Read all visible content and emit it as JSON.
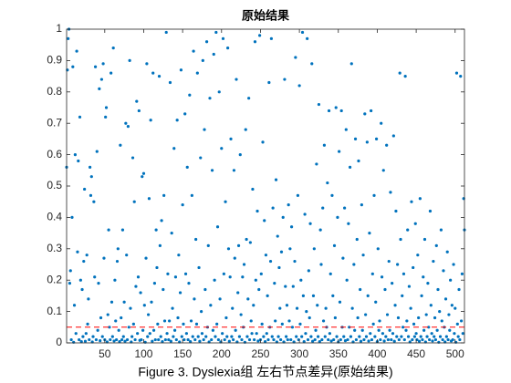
{
  "chart_data": {
    "type": "scatter",
    "title": "原始结果",
    "caption": "Figure 3. Dyslexia组 左右节点差异(原始结果)",
    "color": "#0072bd",
    "hline": {
      "value": 0.05,
      "color": "#ff0000"
    },
    "xlim": [
      1,
      512
    ],
    "ylim": [
      0,
      1
    ],
    "xticks": [
      50,
      100,
      150,
      200,
      250,
      300,
      350,
      400,
      450,
      500
    ],
    "yticks": [
      0,
      0.1,
      0.2,
      0.3,
      0.4,
      0.5,
      0.6,
      0.7,
      0.8,
      0.9,
      1
    ],
    "x": [
      1,
      2,
      3,
      4,
      5,
      6,
      7,
      8,
      9,
      10,
      11,
      12,
      13,
      14,
      15,
      16,
      17,
      18,
      19,
      20,
      21,
      22,
      23,
      24,
      25,
      26,
      27,
      28,
      29,
      30,
      31,
      32,
      33,
      34,
      35,
      36,
      37,
      38,
      39,
      40,
      41,
      42,
      43,
      44,
      45,
      46,
      47,
      48,
      49,
      50,
      51,
      52,
      53,
      54,
      55,
      56,
      57,
      58,
      59,
      60,
      61,
      62,
      63,
      64,
      65,
      66,
      67,
      68,
      69,
      70,
      71,
      72,
      73,
      74,
      75,
      76,
      77,
      78,
      79,
      80,
      81,
      82,
      83,
      84,
      85,
      86,
      87,
      88,
      89,
      90,
      91,
      92,
      93,
      94,
      95,
      96,
      97,
      98,
      99,
      100,
      101,
      102,
      103,
      104,
      105,
      106,
      107,
      108,
      109,
      110,
      111,
      112,
      113,
      114,
      115,
      116,
      117,
      118,
      119,
      120,
      121,
      122,
      123,
      124,
      125,
      126,
      127,
      128,
      129,
      130,
      131,
      132,
      133,
      134,
      135,
      136,
      137,
      138,
      139,
      140,
      141,
      142,
      143,
      144,
      145,
      146,
      147,
      148,
      149,
      150,
      151,
      152,
      153,
      154,
      155,
      156,
      157,
      158,
      159,
      160,
      161,
      162,
      163,
      164,
      165,
      166,
      167,
      168,
      169,
      170,
      171,
      172,
      173,
      174,
      175,
      176,
      177,
      178,
      179,
      180,
      181,
      182,
      183,
      184,
      185,
      186,
      187,
      188,
      189,
      190,
      191,
      192,
      193,
      194,
      195,
      196,
      197,
      198,
      199,
      200,
      201,
      202,
      203,
      204,
      205,
      206,
      207,
      208,
      209,
      210,
      211,
      212,
      213,
      214,
      215,
      216,
      217,
      218,
      219,
      220,
      221,
      222,
      223,
      224,
      225,
      226,
      227,
      228,
      229,
      230,
      231,
      232,
      233,
      234,
      235,
      236,
      237,
      238,
      239,
      240,
      241,
      242,
      243,
      244,
      245,
      246,
      247,
      248,
      249,
      250,
      251,
      252,
      253,
      254,
      255,
      256,
      257,
      258,
      259,
      260,
      261,
      262,
      263,
      264,
      265,
      266,
      267,
      268,
      269,
      270,
      271,
      272,
      273,
      274,
      275,
      276,
      277,
      278,
      279,
      280,
      281,
      282,
      283,
      284,
      285,
      286,
      287,
      288,
      289,
      290,
      291,
      292,
      293,
      294,
      295,
      296,
      297,
      298,
      299,
      300,
      301,
      302,
      303,
      304,
      305,
      306,
      307,
      308,
      309,
      310,
      311,
      312,
      313,
      314,
      315,
      316,
      317,
      318,
      319,
      320,
      321,
      322,
      323,
      324,
      325,
      326,
      327,
      328,
      329,
      330,
      331,
      332,
      333,
      334,
      335,
      336,
      337,
      338,
      339,
      340,
      341,
      342,
      343,
      344,
      345,
      346,
      347,
      348,
      349,
      350,
      351,
      352,
      353,
      354,
      355,
      356,
      357,
      358,
      359,
      360,
      361,
      362,
      363,
      364,
      365,
      366,
      367,
      368,
      369,
      370,
      371,
      372,
      373,
      374,
      375,
      376,
      377,
      378,
      379,
      380,
      381,
      382,
      383,
      384,
      385,
      386,
      387,
      388,
      389,
      390,
      391,
      392,
      393,
      394,
      395,
      396,
      397,
      398,
      399,
      400,
      401,
      402,
      403,
      404,
      405,
      406,
      407,
      408,
      409,
      410,
      411,
      412,
      413,
      414,
      415,
      416,
      417,
      418,
      419,
      420,
      421,
      422,
      423,
      424,
      425,
      426,
      427,
      428,
      429,
      430,
      431,
      432,
      433,
      434,
      435,
      436,
      437,
      438,
      439,
      440,
      441,
      442,
      443,
      444,
      445,
      446,
      447,
      448,
      449,
      450,
      451,
      452,
      453,
      454,
      455,
      456,
      457,
      458,
      459,
      460,
      461,
      462,
      463,
      464,
      465,
      466,
      467,
      468,
      469,
      470,
      471,
      472,
      473,
      474,
      475,
      476,
      477,
      478,
      479,
      480,
      481,
      482,
      483,
      484,
      485,
      486,
      487,
      488,
      489,
      490,
      491,
      492,
      493,
      494,
      495,
      496,
      497,
      498,
      499,
      500,
      501,
      502,
      503,
      504,
      505,
      506,
      507,
      508,
      509,
      510,
      511,
      512
    ],
    "values": [
      0.56,
      0.87,
      0.97,
      1.0,
      0.19,
      0.23,
      0.01,
      0.4,
      0.88,
      0.002,
      0.12,
      0.6,
      0.03,
      0.93,
      0.29,
      0.58,
      0.01,
      0.72,
      0.2,
      0.004,
      0.17,
      0.02,
      0.26,
      0.49,
      0.005,
      0.03,
      0.28,
      0.06,
      0.14,
      0.01,
      0.56,
      0.47,
      0.53,
      0.003,
      0.02,
      0.45,
      0.21,
      0.88,
      0.01,
      0.61,
      0.04,
      0.19,
      0.81,
      0.007,
      0.08,
      0.84,
      0.02,
      0.89,
      0.27,
      0.01,
      0.72,
      0.75,
      0.003,
      0.09,
      0.36,
      0.05,
      0.01,
      0.86,
      0.13,
      0.02,
      0.94,
      0.006,
      0.2,
      0.07,
      0.01,
      0.26,
      0.3,
      0.04,
      0.004,
      0.63,
      0.08,
      0.01,
      0.36,
      0.02,
      0.13,
      0.005,
      0.7,
      0.28,
      0.01,
      0.69,
      0.05,
      0.9,
      0.11,
      0.003,
      0.02,
      0.59,
      0.06,
      0.45,
      0.01,
      0.18,
      0.77,
      0.03,
      0.21,
      0.74,
      0.008,
      0.16,
      0.01,
      0.53,
      0.04,
      0.54,
      0.12,
      0.002,
      0.27,
      0.89,
      0.02,
      0.09,
      0.46,
      0.03,
      0.71,
      0.13,
      0.005,
      0.86,
      0.04,
      0.19,
      0.01,
      0.36,
      0.24,
      0.06,
      0.01,
      0.85,
      0.31,
      0.02,
      0.39,
      0.004,
      0.17,
      0.47,
      0.07,
      0.01,
      0.99,
      0.03,
      0.22,
      0.01,
      0.07,
      0.83,
      0.005,
      0.35,
      0.11,
      0.02,
      0.62,
      0.04,
      0.21,
      0.01,
      0.71,
      0.08,
      0.28,
      0.003,
      0.16,
      0.87,
      0.02,
      0.44,
      0.06,
      0.01,
      0.73,
      0.22,
      0.03,
      0.56,
      0.01,
      0.19,
      0.79,
      0.004,
      0.07,
      0.47,
      0.02,
      0.93,
      0.14,
      0.01,
      0.33,
      0.06,
      0.86,
      0.02,
      0.24,
      0.005,
      0.59,
      0.1,
      0.03,
      0.9,
      0.01,
      0.68,
      0.17,
      0.02,
      0.96,
      0.05,
      0.31,
      0.003,
      0.78,
      0.12,
      0.01,
      0.55,
      0.04,
      0.92,
      0.2,
      0.02,
      0.99,
      0.06,
      0.37,
      0.01,
      0.8,
      0.14,
      0.003,
      0.62,
      0.03,
      0.97,
      0.22,
      0.01,
      0.45,
      0.08,
      0.02,
      0.94,
      0.3,
      0.005,
      0.21,
      0.65,
      0.02,
      0.11,
      0.01,
      0.55,
      0.27,
      0.04,
      0.84,
      0.003,
      0.16,
      0.31,
      0.02,
      0.6,
      0.09,
      0.01,
      0.21,
      0.05,
      0.25,
      0.002,
      0.68,
      0.33,
      0.02,
      0.14,
      0.78,
      0.01,
      0.32,
      0.07,
      0.03,
      0.49,
      0.12,
      0.01,
      0.96,
      0.2,
      0.03,
      0.42,
      0.006,
      0.17,
      0.98,
      0.01,
      0.22,
      0.06,
      0.64,
      0.02,
      0.39,
      0.004,
      0.28,
      0.03,
      0.15,
      0.01,
      0.83,
      0.05,
      0.26,
      0.97,
      0.02,
      0.43,
      0.01,
      0.19,
      0.07,
      0.52,
      0.003,
      0.34,
      0.02,
      0.24,
      0.11,
      0.01,
      0.29,
      0.06,
      0.4,
      0.003,
      0.84,
      0.18,
      0.02,
      0.12,
      0.01,
      0.44,
      0.07,
      0.3,
      0.01,
      0.37,
      0.05,
      0.18,
      0.003,
      0.26,
      0.91,
      0.02,
      0.11,
      0.47,
      0.01,
      0.82,
      0.06,
      0.2,
      0.02,
      0.99,
      0.15,
      0.004,
      0.41,
      0.03,
      0.1,
      0.97,
      0.01,
      0.23,
      0.08,
      0.38,
      0.02,
      0.89,
      0.005,
      0.15,
      0.3,
      0.01,
      0.04,
      0.57,
      0.12,
      0.02,
      0.76,
      0.004,
      0.36,
      0.25,
      0.01,
      0.43,
      0.07,
      0.63,
      0.02,
      0.11,
      0.05,
      0.51,
      0.01,
      0.74,
      0.03,
      0.22,
      0.006,
      0.47,
      0.15,
      0.01,
      0.31,
      0.08,
      0.75,
      0.02,
      0.4,
      0.003,
      0.61,
      0.13,
      0.01,
      0.74,
      0.05,
      0.27,
      0.02,
      0.43,
      0.007,
      0.68,
      0.2,
      0.01,
      0.38,
      0.05,
      0.56,
      0.02,
      0.89,
      0.11,
      0.003,
      0.25,
      0.04,
      0.65,
      0.01,
      0.33,
      0.08,
      0.58,
      0.02,
      0.17,
      0.005,
      0.44,
      0.04,
      0.28,
      0.01,
      0.73,
      0.09,
      0.02,
      0.64,
      0.15,
      0.006,
      0.35,
      0.03,
      0.74,
      0.01,
      0.22,
      0.06,
      0.47,
      0.02,
      0.13,
      0.65,
      0.004,
      0.3,
      0.04,
      0.07,
      0.01,
      0.7,
      0.21,
      0.03,
      0.55,
      0.006,
      0.17,
      0.02,
      0.63,
      0.09,
      0.01,
      0.26,
      0.04,
      0.48,
      0.01,
      0.19,
      0.03,
      0.66,
      0.005,
      0.12,
      0.42,
      0.02,
      0.25,
      0.08,
      0.01,
      0.86,
      0.33,
      0.02,
      0.15,
      0.05,
      0.22,
      0.01,
      0.85,
      0.04,
      0.07,
      0.36,
      0.02,
      0.18,
      0.003,
      0.11,
      0.45,
      0.01,
      0.24,
      0.06,
      0.02,
      0.38,
      0.03,
      0.01,
      0.28,
      0.08,
      0.005,
      0.46,
      0.02,
      0.15,
      0.01,
      0.21,
      0.04,
      0.33,
      0.003,
      0.09,
      0.02,
      0.19,
      0.05,
      0.01,
      0.42,
      0.12,
      0.03,
      0.006,
      0.26,
      0.02,
      0.08,
      0.01,
      0.31,
      0.04,
      0.17,
      0.002,
      0.1,
      0.02,
      0.36,
      0.07,
      0.01,
      0.23,
      0.05,
      0.003,
      0.14,
      0.02,
      0.29,
      0.01,
      0.09,
      0.04,
      0.2,
      0.006,
      0.12,
      0.01,
      0.25,
      0.03,
      0.11,
      0.002,
      0.86,
      0.06,
      0.02,
      0.17,
      0.01,
      0.85,
      0.07,
      0.22,
      0.03,
      0.46,
      0.36
    ]
  }
}
